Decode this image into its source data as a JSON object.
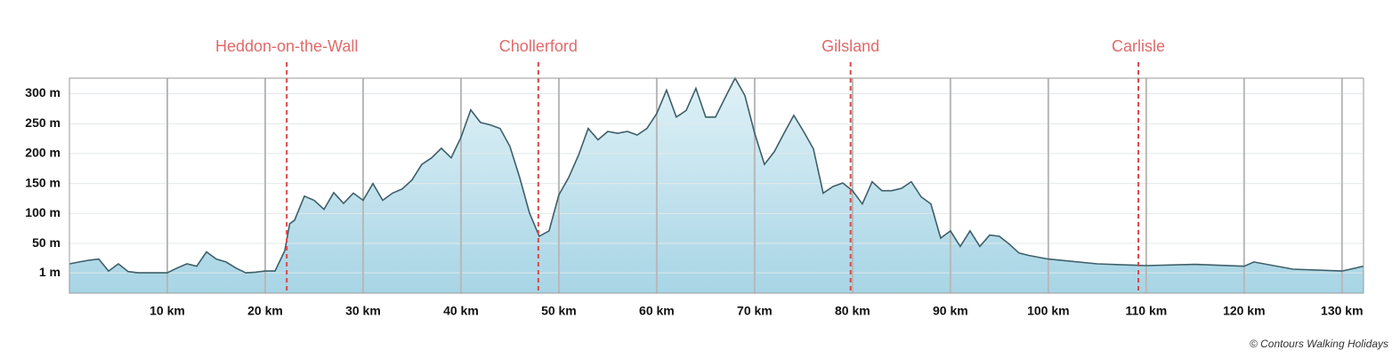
{
  "chart_data": {
    "type": "area",
    "annotation": "© Contours Walking Holidays",
    "color": "#3d5f69",
    "fill_top": "#dff1f7",
    "fill_bottom": "#a8d5e5",
    "marker_color": "#d9474a",
    "grid": true,
    "xlim": [
      0,
      132.2
    ],
    "ylim": [
      -33,
      326
    ],
    "xticks": [
      {
        "value": 10,
        "label": "10 km"
      },
      {
        "value": 20,
        "label": "20 km"
      },
      {
        "value": 30,
        "label": "30 km"
      },
      {
        "value": 40,
        "label": "40 km"
      },
      {
        "value": 50,
        "label": "50 km"
      },
      {
        "value": 60,
        "label": "60 km"
      },
      {
        "value": 70,
        "label": "70 km"
      },
      {
        "value": 80,
        "label": "80 km"
      },
      {
        "value": 90,
        "label": "90 km"
      },
      {
        "value": 100,
        "label": "100 km"
      },
      {
        "value": 110,
        "label": "110 km"
      },
      {
        "value": 120,
        "label": "120 km"
      },
      {
        "value": 130,
        "label": "130 km"
      }
    ],
    "yticks": [
      {
        "value": 1,
        "label": "1 m"
      },
      {
        "value": 50,
        "label": "50 m"
      },
      {
        "value": 100,
        "label": "100 m"
      },
      {
        "value": 150,
        "label": "150 m"
      },
      {
        "value": 200,
        "label": "200 m"
      },
      {
        "value": 250,
        "label": "250 m"
      },
      {
        "value": 300,
        "label": "300 m"
      }
    ],
    "markers": [
      {
        "label": "Heddon-on-the-Wall",
        "x": 22.2
      },
      {
        "label": "Chollerford",
        "x": 47.9
      },
      {
        "label": "Gilsland",
        "x": 79.8
      },
      {
        "label": "Carlisle",
        "x": 109.2
      }
    ],
    "x": [
      0,
      1,
      2,
      3,
      4,
      5,
      6,
      7,
      8,
      9,
      10,
      11,
      12,
      13,
      14,
      15,
      16,
      17,
      18,
      19,
      20,
      21,
      22,
      22.5,
      23,
      24,
      25,
      26,
      27,
      28,
      29,
      30,
      31,
      32,
      33,
      34,
      35,
      36,
      37,
      38,
      39,
      40,
      41,
      42,
      43,
      44,
      45,
      46,
      47,
      48,
      49,
      50,
      51,
      52,
      53,
      54,
      55,
      56,
      57,
      58,
      59,
      60,
      61,
      62,
      63,
      64,
      65,
      66,
      67,
      68,
      69,
      70,
      71,
      72,
      73,
      74,
      75,
      76,
      77,
      78,
      79,
      80,
      81,
      82,
      83,
      84,
      85,
      86,
      87,
      88,
      89,
      90,
      91,
      92,
      93,
      94,
      95,
      96,
      97,
      98,
      99,
      100,
      105,
      110,
      115,
      120,
      121,
      125,
      130,
      132.2
    ],
    "values": [
      16,
      19,
      22,
      24,
      4,
      16,
      3,
      1,
      1,
      1,
      1,
      9,
      16,
      12,
      36,
      24,
      19,
      9,
      1,
      2,
      4,
      4,
      38,
      83,
      89,
      129,
      122,
      107,
      135,
      117,
      134,
      122,
      150,
      122,
      134,
      141,
      156,
      182,
      193,
      209,
      193,
      227,
      273,
      252,
      248,
      242,
      212,
      160,
      101,
      62,
      71,
      131,
      160,
      197,
      242,
      223,
      237,
      234,
      237,
      231,
      242,
      267,
      306,
      261,
      272,
      309,
      261,
      261,
      294,
      326,
      297,
      234,
      182,
      203,
      234,
      264,
      237,
      208,
      134,
      145,
      151,
      138,
      116,
      153,
      138,
      138,
      142,
      153,
      128,
      116,
      59,
      71,
      45,
      71,
      45,
      64,
      62,
      49,
      34,
      30,
      27,
      24,
      16,
      13,
      15,
      12,
      19,
      7,
      4,
      12
    ]
  }
}
